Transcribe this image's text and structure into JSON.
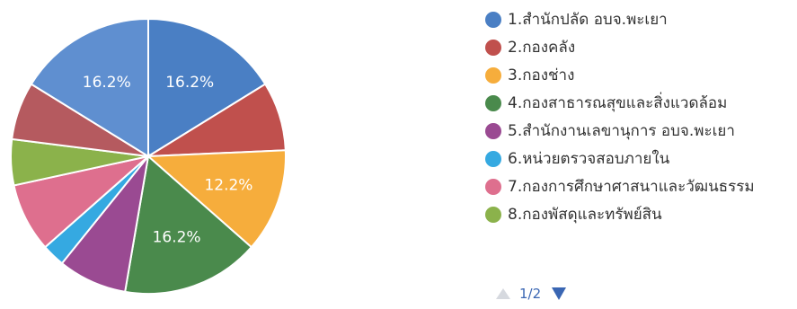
{
  "chart_data": {
    "type": "pie",
    "title": "",
    "legend_position": "right",
    "slices": [
      {
        "name": "1.สำนักปลัด อบจ.พะเยา",
        "value": 16.2,
        "label": "16.2%",
        "color": "#4a7fc4"
      },
      {
        "name": "2.กองคลัง",
        "value": 8.1,
        "label": "",
        "color": "#c0504d"
      },
      {
        "name": "3.กองช่าง",
        "value": 12.2,
        "label": "12.2%",
        "color": "#f6ad3c"
      },
      {
        "name": "4.กองสาธารณสุขและสิ่งแวดล้อม",
        "value": 16.2,
        "label": "16.2%",
        "color": "#4a8a4c"
      },
      {
        "name": "5.สำนักงานเลขานุการ อบจ.พะเยา",
        "value": 8.1,
        "label": "",
        "color": "#9a4a92"
      },
      {
        "name": "6.หน่วยตรวจสอบภายใน",
        "value": 2.7,
        "label": "",
        "color": "#35a9e1"
      },
      {
        "name": "7.กองการศึกษาศาสนาและวัฒนธรรม",
        "value": 8.1,
        "label": "",
        "color": "#de6f8e"
      },
      {
        "name": "8.กองพัสดุและทรัพย์สิน",
        "value": 5.4,
        "label": "",
        "color": "#8bb24b"
      },
      {
        "name": "",
        "value": 6.8,
        "label": "",
        "color": "#b55a5f"
      },
      {
        "name": "",
        "value": 16.2,
        "label": "16.2%",
        "color": "#5f8fd0"
      }
    ]
  },
  "pager": {
    "text": "1/2",
    "prev_icon": "triangle-up-icon",
    "next_icon": "triangle-down-icon"
  }
}
